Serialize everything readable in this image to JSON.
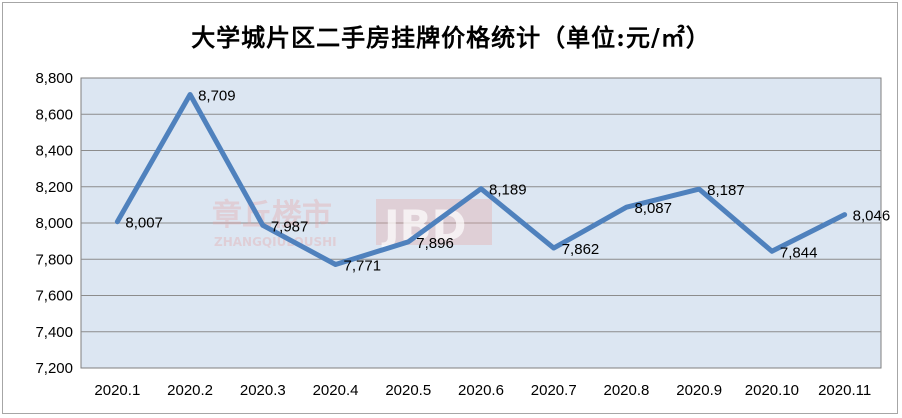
{
  "chart_data": {
    "type": "line",
    "title": "大学城片区二手房挂牌价格统计（单位:元/㎡）",
    "xlabel": "",
    "ylabel": "",
    "categories": [
      "2020.1",
      "2020.2",
      "2020.3",
      "2020.4",
      "2020.5",
      "2020.6",
      "2020.7",
      "2020.8",
      "2020.9",
      "2020.10",
      "2020.11"
    ],
    "series": [
      {
        "values": [
          8007,
          8709,
          7987,
          7771,
          7896,
          8189,
          7862,
          8087,
          8187,
          7844,
          8046
        ]
      }
    ],
    "data_labels": [
      "8,007",
      "8,709",
      "7,987",
      "7,771",
      "7,896",
      "8,189",
      "7,862",
      "8,087",
      "8,187",
      "7,844",
      "8,046"
    ],
    "ylim": [
      7200,
      8800
    ],
    "yticks": [
      7200,
      7400,
      7600,
      7800,
      8000,
      8200,
      8400,
      8600,
      8800
    ],
    "ytick_labels": [
      "7,200",
      "7,400",
      "7,600",
      "7,800",
      "8,000",
      "8,200",
      "8,400",
      "8,600",
      "8,800"
    ],
    "grid": true,
    "legend": "none",
    "line_color": "#4f81bd",
    "plot_background": "#dce6f2"
  },
  "watermark": {
    "line1": "章丘楼市",
    "line2": "ZHANGQIULOUSHI",
    "box": "JBD"
  }
}
